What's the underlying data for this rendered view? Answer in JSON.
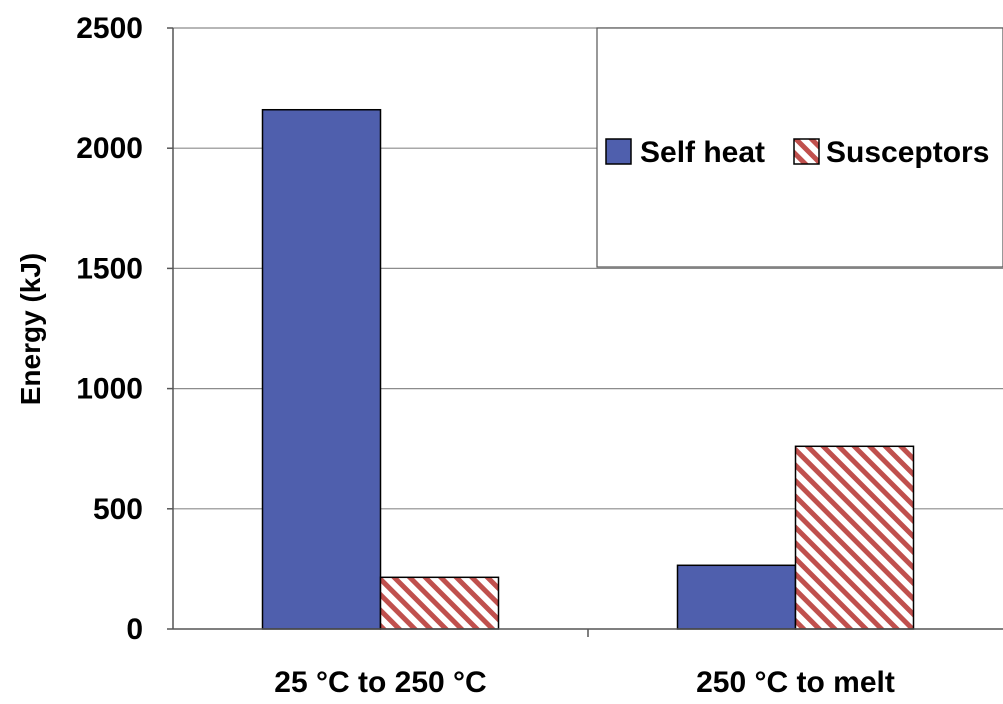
{
  "chart_data": {
    "type": "bar",
    "title": "",
    "xlabel": "",
    "ylabel": "Energy (kJ)",
    "ylim": [
      0,
      2500
    ],
    "yticks": [
      0,
      500,
      1000,
      1500,
      2000,
      2500
    ],
    "grid": true,
    "legend_position": "top-right",
    "categories": [
      "25 °C to 250 °C",
      "250 °C to melt"
    ],
    "series": [
      {
        "name": "Self heat",
        "values": [
          2160,
          265
        ],
        "color": "#4f5fad",
        "pattern": "solid"
      },
      {
        "name": "Susceptors",
        "values": [
          215,
          760
        ],
        "color": "#c0504d",
        "pattern": "diagonal-hatch"
      }
    ]
  }
}
